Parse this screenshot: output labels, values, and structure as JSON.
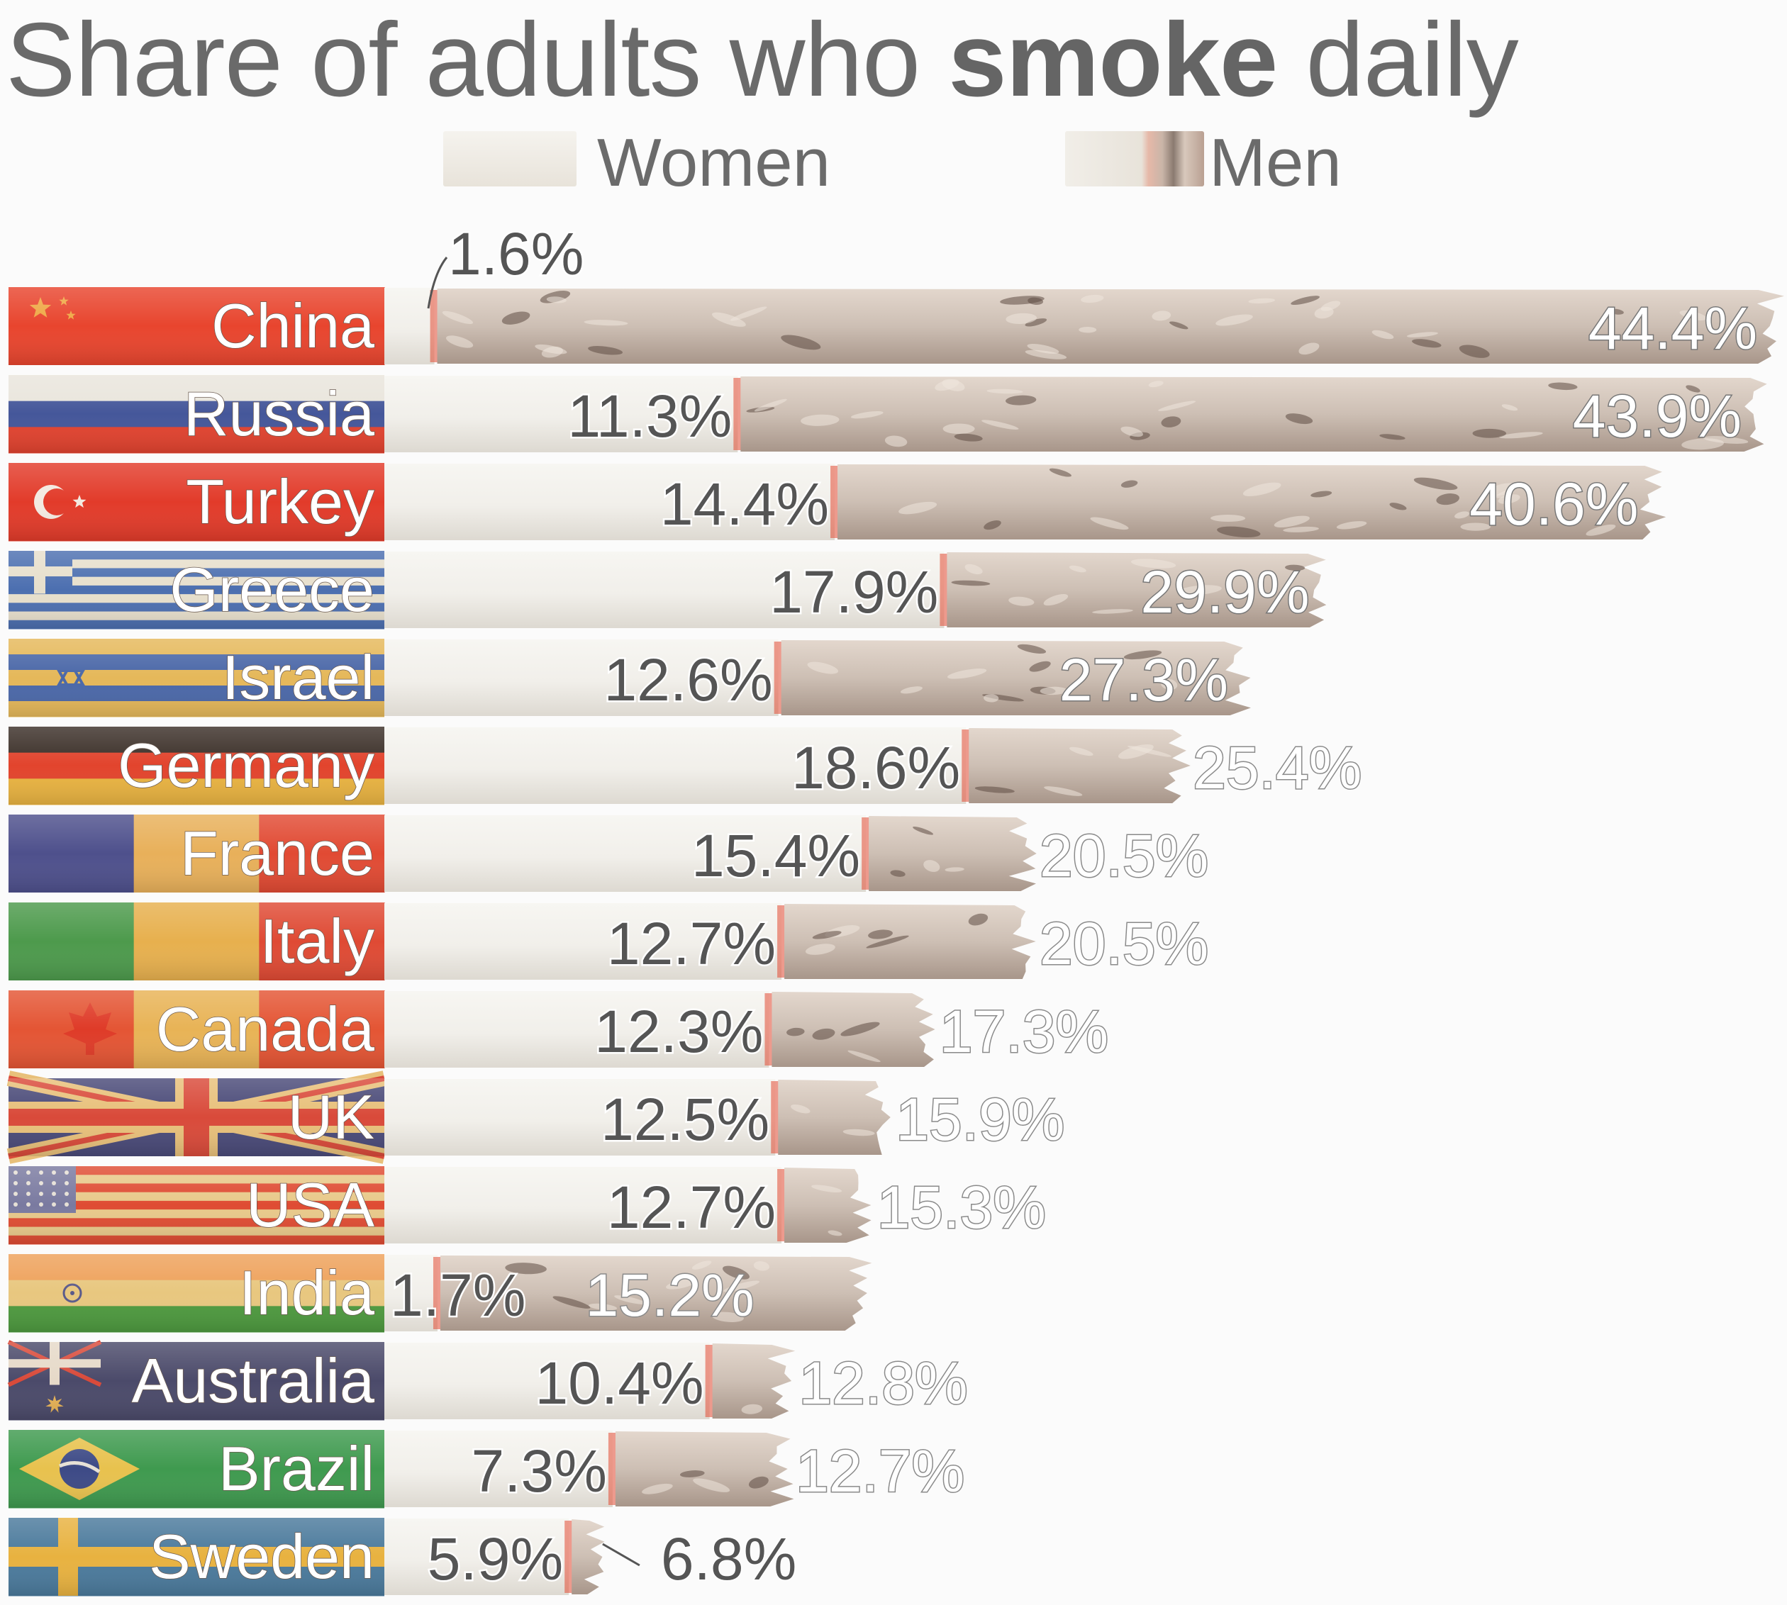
{
  "title": {
    "part1": "Share of adults who ",
    "part2": "smoke",
    "part3": " daily"
  },
  "legend": {
    "women": "Women",
    "men": "Men"
  },
  "colors": {
    "paper": "#f1efea",
    "ash": "#cdbfb4",
    "ember": "#e24a33",
    "label_text": "#ffffff",
    "value_text": "#555555"
  },
  "chart_data": {
    "type": "bar",
    "categories": [
      "China",
      "Russia",
      "Turkey",
      "Greece",
      "Israel",
      "Germany",
      "France",
      "Italy",
      "Canada",
      "UK",
      "USA",
      "India",
      "Australia",
      "Brazil",
      "Sweden"
    ],
    "series": [
      {
        "name": "Women",
        "values": [
          1.6,
          11.3,
          14.4,
          17.9,
          12.6,
          18.6,
          15.4,
          12.7,
          12.3,
          12.5,
          12.7,
          1.7,
          10.4,
          7.3,
          5.9
        ]
      },
      {
        "name": "Men",
        "values": [
          44.4,
          43.9,
          40.6,
          29.9,
          27.3,
          25.4,
          20.5,
          20.5,
          17.3,
          15.9,
          15.3,
          15.2,
          12.8,
          12.7,
          6.8
        ]
      }
    ],
    "value_labels": {
      "women": [
        "1.6%",
        "11.3%",
        "14.4%",
        "17.9%",
        "12.6%",
        "18.6%",
        "15.4%",
        "12.7%",
        "12.3%",
        "12.5%",
        "12.7%",
        "1.7%",
        "10.4%",
        "7.3%",
        "5.9%"
      ],
      "men": [
        "44.4%",
        "43.9%",
        "40.6%",
        "29.9%",
        "27.3%",
        "25.4%",
        "20.5%",
        "20.5%",
        "17.3%",
        "15.9%",
        "15.3%",
        "15.2%",
        "12.8%",
        "12.7%",
        "6.8%"
      ]
    },
    "flags": [
      {
        "bands": "v",
        "colors": [
          "#e8452e",
          "#e8452e"
        ],
        "mark": "stars"
      },
      {
        "bands": "h",
        "colors": [
          "#e9e5dc",
          "#45579a",
          "#e2432f"
        ]
      },
      {
        "bands": "h",
        "colors": [
          "#e23b2a",
          "#e23b2a"
        ],
        "mark": "crescent"
      },
      {
        "bands": "stripes",
        "colors": [
          "#4c6fb0",
          "#e7dfcc"
        ],
        "mark": "cross-canton"
      },
      {
        "bands": "h",
        "colors": [
          "#e5b85a",
          "#4b68a8",
          "#e5b85a",
          "#4b68a8",
          "#e5b85a"
        ],
        "mark": "star-of-david"
      },
      {
        "bands": "h",
        "colors": [
          "#3b2f28",
          "#e2442d",
          "#e9b341"
        ]
      },
      {
        "bands": "v",
        "colors": [
          "#4e508c",
          "#e8b05a",
          "#e14a33"
        ]
      },
      {
        "bands": "v",
        "colors": [
          "#4d9a4c",
          "#e7b04e",
          "#df4a34"
        ]
      },
      {
        "bands": "v",
        "colors": [
          "#e45534",
          "#e8b356",
          "#e45534"
        ],
        "mark": "maple-leaf"
      },
      {
        "bands": "uk",
        "colors": [
          "#4a4a78",
          "#e8c07a",
          "#d94a3a"
        ],
        "mark": "union-jack"
      },
      {
        "bands": "stripes",
        "colors": [
          "#df4c33",
          "#e8c98a"
        ],
        "mark": "stars-canton"
      },
      {
        "bands": "h",
        "colors": [
          "#eea15a",
          "#e8c77f",
          "#4e9a3f"
        ],
        "mark": "chakra"
      },
      {
        "bands": "h",
        "colors": [
          "#4b4a6a",
          "#4b4a6a"
        ],
        "mark": "australia"
      },
      {
        "bands": "h",
        "colors": [
          "#3f9a4f",
          "#3f9a4f"
        ],
        "mark": "brazil"
      },
      {
        "bands": "h",
        "colors": [
          "#4b7a9c",
          "#4b7a9c"
        ],
        "mark": "nordic-cross"
      }
    ],
    "xlim": [
      0,
      45
    ]
  }
}
